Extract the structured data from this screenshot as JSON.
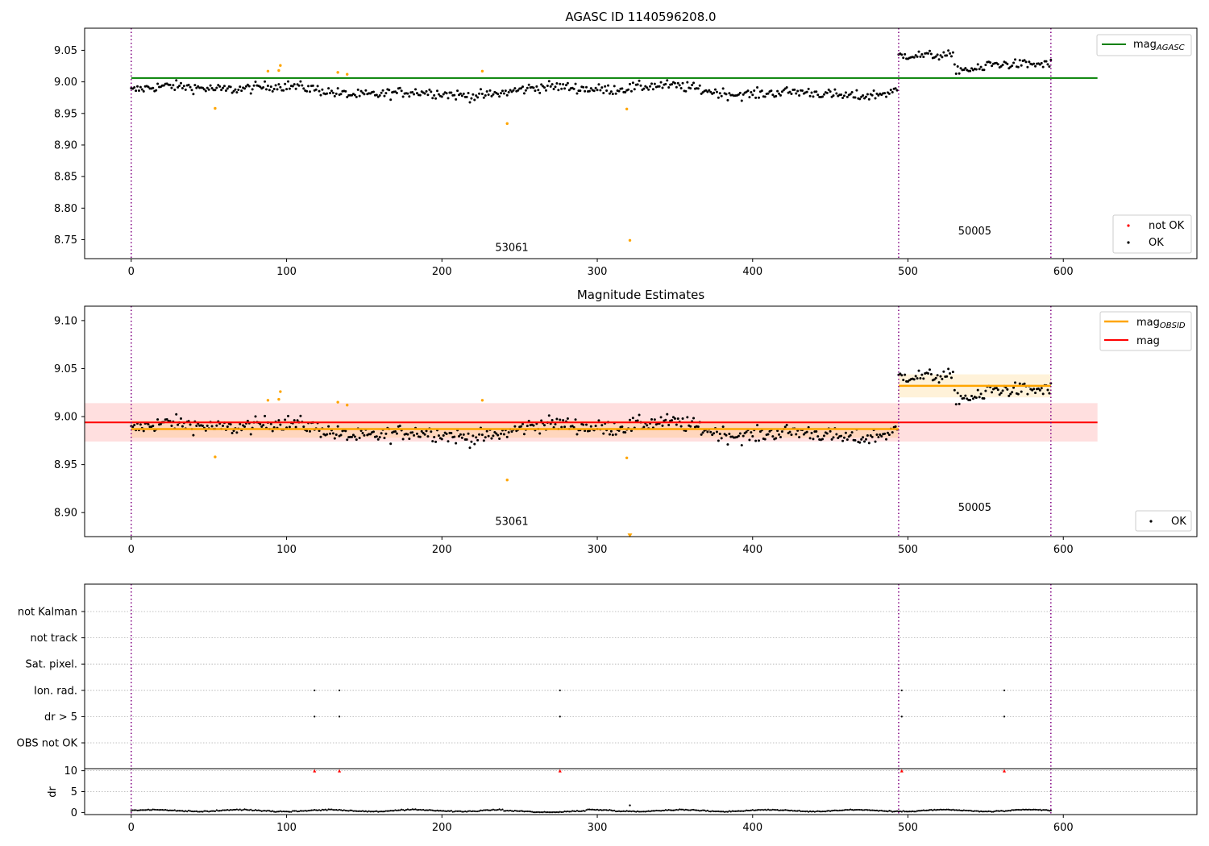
{
  "figure": {
    "obs_lines_x": [
      0,
      494,
      592
    ],
    "x_ticks": [
      0,
      100,
      200,
      300,
      400,
      500,
      600
    ],
    "colors": {
      "ok": "#000000",
      "not_ok": "#ff0000",
      "flagged": "#ffa500",
      "agasc_line": "#008000",
      "mag_line": "#ff0000",
      "mag_band": "#ffc0c0",
      "obsid_line": "#ffa500",
      "obs_divider": "#800080",
      "grid": "#b0b0b0"
    }
  },
  "chart_data": [
    {
      "id": "panel1",
      "type": "scatter",
      "title": "AGASC ID 1140596208.0",
      "xlim": [
        -30,
        686
      ],
      "ylim": [
        8.72,
        9.085
      ],
      "y_ticks": [
        "9.05",
        "9.00",
        "8.95",
        "8.90",
        "8.85",
        "8.80",
        "8.75"
      ],
      "y_tick_values": [
        9.05,
        9.0,
        8.95,
        8.9,
        8.85,
        8.8,
        8.75
      ],
      "mag_agasc": 9.006,
      "mag_agasc_x_range": [
        0,
        622
      ],
      "obsids": [
        {
          "label": "53061",
          "x_range": [
            0,
            494
          ],
          "y": 8.732,
          "label_x": 245,
          "base": 8.986
        },
        {
          "label": "50005",
          "x_range": [
            494,
            592
          ],
          "y": 8.758,
          "label_x": 543,
          "base": 9.032
        }
      ],
      "flagged_points": [
        {
          "x": 54,
          "y": 8.958
        },
        {
          "x": 88,
          "y": 9.017
        },
        {
          "x": 95,
          "y": 9.018
        },
        {
          "x": 96,
          "y": 9.026
        },
        {
          "x": 133,
          "y": 9.015
        },
        {
          "x": 139,
          "y": 9.012
        },
        {
          "x": 226,
          "y": 9.017
        },
        {
          "x": 242,
          "y": 8.934
        },
        {
          "x": 319,
          "y": 8.957
        },
        {
          "x": 321,
          "y": 8.749
        }
      ],
      "legend_top": [
        {
          "label": "mag",
          "sub": "AGASC"
        }
      ],
      "legend_bottom": [
        {
          "label": "not OK"
        },
        {
          "label": "OK"
        }
      ]
    },
    {
      "id": "panel2",
      "type": "scatter",
      "title": "Magnitude Estimates",
      "xlim": [
        -30,
        686
      ],
      "ylim": [
        8.875,
        9.115
      ],
      "y_ticks": [
        "9.10",
        "9.05",
        "9.00",
        "8.95",
        "8.90"
      ],
      "y_tick_values": [
        9.1,
        9.05,
        9.0,
        8.95,
        8.9
      ],
      "mag": 8.994,
      "mag_band": [
        8.974,
        9.014
      ],
      "mag_x_range": [
        -30,
        622
      ],
      "mag_obsid": [
        {
          "x_range": [
            0,
            494
          ],
          "value": 8.987,
          "band": [
            8.978,
            8.996
          ]
        },
        {
          "x_range": [
            494,
            592
          ],
          "value": 9.032,
          "band": [
            9.02,
            9.044
          ]
        }
      ],
      "obsids": [
        {
          "label": "53061",
          "label_x": 245,
          "y": 8.887
        },
        {
          "label": "50005",
          "label_x": 543,
          "y": 8.902
        }
      ],
      "flagged_points": [
        {
          "x": 54,
          "y": 8.958
        },
        {
          "x": 88,
          "y": 9.017
        },
        {
          "x": 95,
          "y": 9.018
        },
        {
          "x": 96,
          "y": 9.026
        },
        {
          "x": 133,
          "y": 9.015
        },
        {
          "x": 139,
          "y": 9.012
        },
        {
          "x": 226,
          "y": 9.017
        },
        {
          "x": 242,
          "y": 8.934
        },
        {
          "x": 319,
          "y": 8.957
        }
      ],
      "legend_top": [
        {
          "label": "mag",
          "sub": "OBSID"
        },
        {
          "label": "mag"
        }
      ],
      "legend_bottom": [
        {
          "label": "OK"
        }
      ]
    },
    {
      "id": "panel3",
      "type": "scatter",
      "xlim": [
        -30,
        686
      ],
      "flag_categories": [
        "not Kalman",
        "not track",
        "Sat. pixel.",
        "Ion. rad.",
        "dr > 5",
        "OBS not OK"
      ],
      "flag_points": [
        {
          "category": "Ion. rad.",
          "x": [
            118,
            134,
            276,
            496,
            562
          ]
        },
        {
          "category": "dr > 5",
          "x": [
            118,
            134,
            276,
            496,
            562
          ]
        }
      ]
    },
    {
      "id": "panel4",
      "type": "scatter",
      "ylabel": "dr",
      "xlim": [
        -30,
        686
      ],
      "ylim": [
        -0.5,
        10.5
      ],
      "y_ticks": [
        "10",
        "5",
        "0"
      ],
      "y_tick_values": [
        10,
        5,
        0
      ],
      "dr_markers_x": [
        118,
        134,
        276,
        496,
        562
      ],
      "dr_marker_y": 10,
      "outlier": {
        "x": 321,
        "y": 1.7
      }
    }
  ]
}
